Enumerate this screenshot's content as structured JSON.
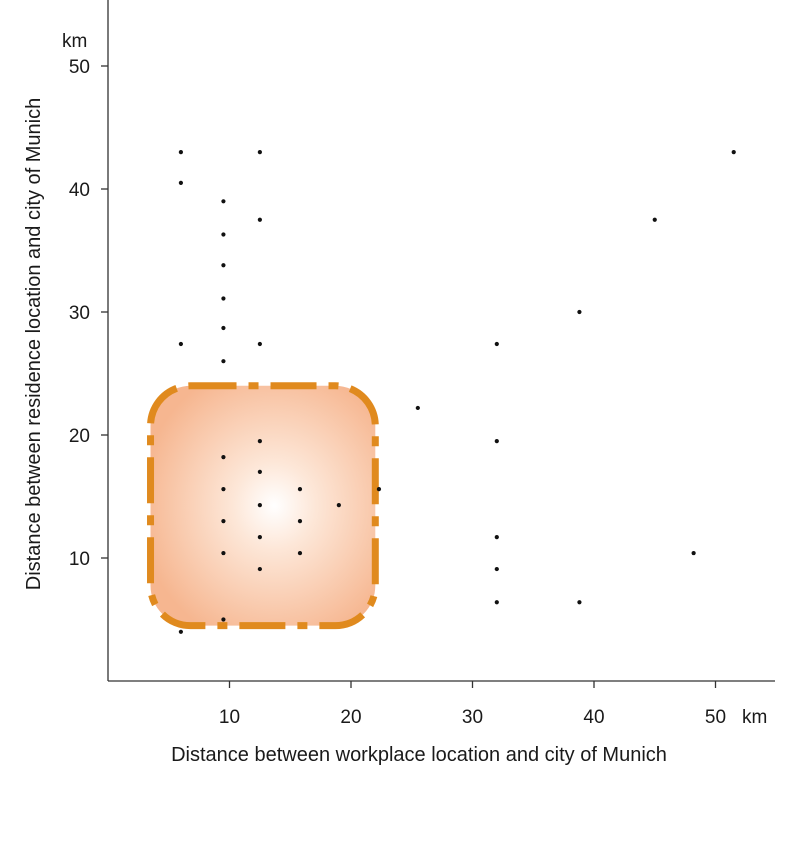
{
  "chart_data": {
    "type": "scatter",
    "title": "",
    "xlabel": "Distance between workplace location and city of Munich",
    "ylabel": "Distance between residence location and city of Munich",
    "x_unit": "km",
    "y_unit": "km",
    "xlim": [
      0,
      55
    ],
    "ylim": [
      0,
      55
    ],
    "x_ticks": [
      10,
      20,
      30,
      40,
      50
    ],
    "y_ticks": [
      10,
      20,
      30,
      40,
      50
    ],
    "grid": false,
    "highlight_region": {
      "shape": "rounded-rectangle",
      "x_range": [
        3.5,
        22
      ],
      "y_range": [
        4.5,
        24
      ],
      "fill": "#f4a77f",
      "border_color": "#e08a1e",
      "border_style": "dashed"
    },
    "colors": {
      "points": "#111111",
      "axis": "#333333"
    },
    "points": [
      {
        "x": 6,
        "y": 43
      },
      {
        "x": 12.5,
        "y": 43
      },
      {
        "x": 51.5,
        "y": 43
      },
      {
        "x": 6,
        "y": 40.5
      },
      {
        "x": 9.5,
        "y": 39
      },
      {
        "x": 12.5,
        "y": 37.5
      },
      {
        "x": 45,
        "y": 37.5
      },
      {
        "x": 9.5,
        "y": 36.3
      },
      {
        "x": 9.5,
        "y": 33.8
      },
      {
        "x": 9.5,
        "y": 31.1
      },
      {
        "x": 38.8,
        "y": 30
      },
      {
        "x": 9.5,
        "y": 28.7
      },
      {
        "x": 6,
        "y": 27.4
      },
      {
        "x": 12.5,
        "y": 27.4
      },
      {
        "x": 32,
        "y": 27.4
      },
      {
        "x": 9.5,
        "y": 26
      },
      {
        "x": 25.5,
        "y": 22.2
      },
      {
        "x": 12.5,
        "y": 19.5
      },
      {
        "x": 32,
        "y": 19.5
      },
      {
        "x": 9.5,
        "y": 18.2
      },
      {
        "x": 12.5,
        "y": 17
      },
      {
        "x": 9.5,
        "y": 15.6
      },
      {
        "x": 15.8,
        "y": 15.6
      },
      {
        "x": 22.3,
        "y": 15.6
      },
      {
        "x": 12.5,
        "y": 14.3
      },
      {
        "x": 19,
        "y": 14.3
      },
      {
        "x": 9.5,
        "y": 13
      },
      {
        "x": 15.8,
        "y": 13
      },
      {
        "x": 12.5,
        "y": 11.7
      },
      {
        "x": 32,
        "y": 11.7
      },
      {
        "x": 9.5,
        "y": 10.4
      },
      {
        "x": 15.8,
        "y": 10.4
      },
      {
        "x": 48.2,
        "y": 10.4
      },
      {
        "x": 12.5,
        "y": 9.1
      },
      {
        "x": 32,
        "y": 9.1
      },
      {
        "x": 32,
        "y": 6.4
      },
      {
        "x": 38.8,
        "y": 6.4
      },
      {
        "x": 9.5,
        "y": 5
      },
      {
        "x": 6,
        "y": 4
      }
    ]
  }
}
